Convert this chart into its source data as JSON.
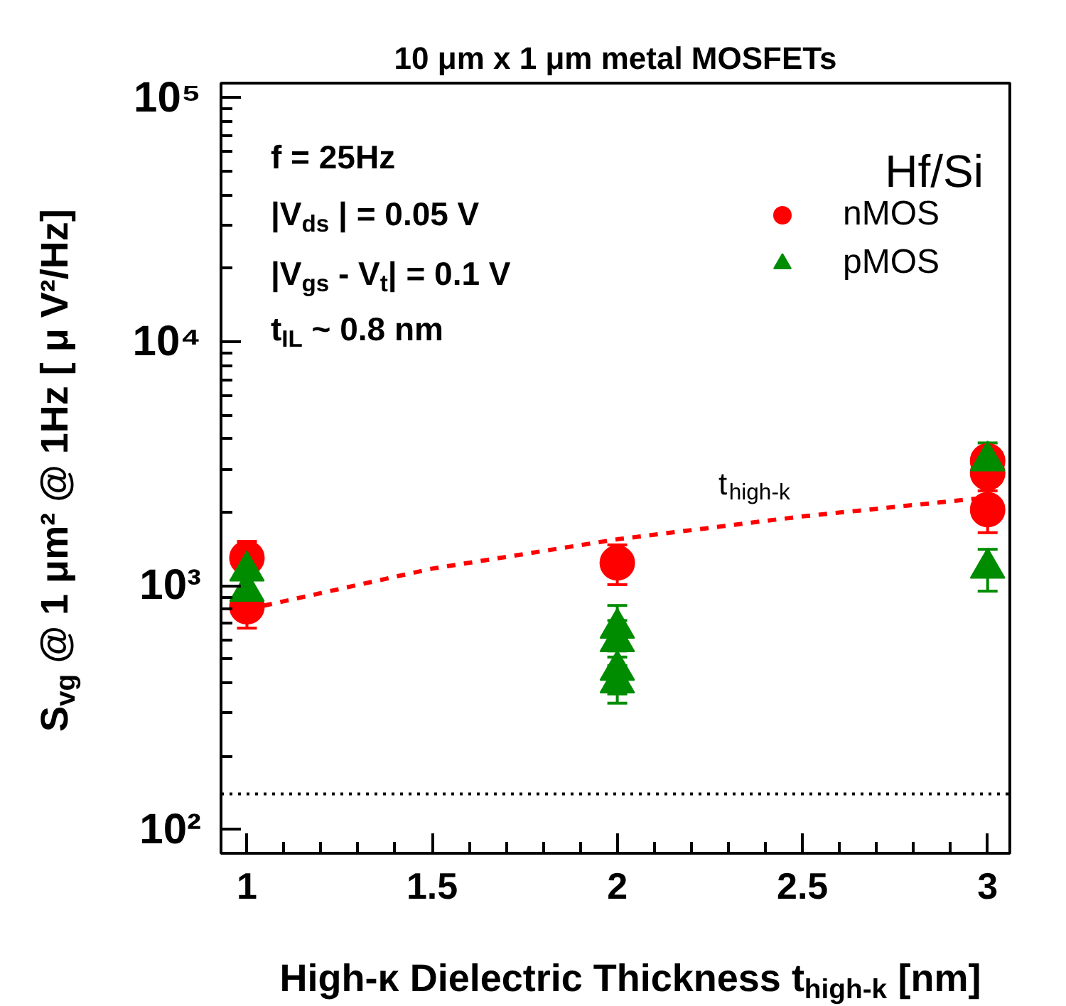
{
  "chart_data": {
    "type": "scatter",
    "title": "10 μm x 1 μm metal MOSFETs",
    "xlabel": "High-κ Dielectric Thickness t$_{high-k}$ [nm]",
    "ylabel": "S$_{vg}$ @ 1 μm² @ 1Hz  [ μ V²/Hz]",
    "xlim": [
      0.93,
      3.06
    ],
    "xticks": [
      1,
      1.5,
      2,
      2.5,
      3
    ],
    "ylim": [
      80,
      115000
    ],
    "yticks": [
      {
        "value": 100,
        "label": "10²"
      },
      {
        "value": 1000,
        "label": "10³"
      },
      {
        "value": 10000,
        "label": "10⁴"
      },
      {
        "value": 100000,
        "label": "10⁵"
      }
    ],
    "log": "y",
    "grid": false,
    "legend": "top right",
    "annotations": [
      "f = 25Hz",
      "|V$_{ds}$ | = 0.05 V",
      "|V$_{gs}$ - V$_{t}$| = 0.1 V",
      "t$_{IL}$ ~ 0.8 nm",
      "Hf/Si",
      "t$_{high-k}$"
    ],
    "ref_lines": [
      {
        "axis": "y",
        "value": 140,
        "color": "#000000",
        "line_style": "dotted"
      }
    ],
    "series": [
      {
        "name": "nMOS",
        "marker": "circle",
        "color": "#ff0000",
        "x": [
          1,
          1,
          2,
          3,
          3,
          3
        ],
        "values": [
          1300,
          820,
          1240,
          3250,
          2900,
          2050
        ],
        "errors": [
          220,
          150,
          230,
          400,
          350,
          400
        ]
      },
      {
        "name": "pMOS",
        "marker": "triangle",
        "color": "#008c00",
        "x": [
          1,
          1,
          2,
          2,
          2,
          2,
          3,
          3
        ],
        "values": [
          1150,
          950,
          670,
          590,
          450,
          400,
          3250,
          1180
        ],
        "errors": [
          200,
          170,
          160,
          130,
          90,
          70,
          600,
          230
        ]
      },
      {
        "type": "line",
        "line_style": "dashed",
        "color": "#ff0000",
        "x": [
          1,
          1.5,
          2,
          2.5,
          3
        ],
        "values": [
          800,
          1175,
          1550,
          1925,
          2300
        ]
      }
    ]
  }
}
